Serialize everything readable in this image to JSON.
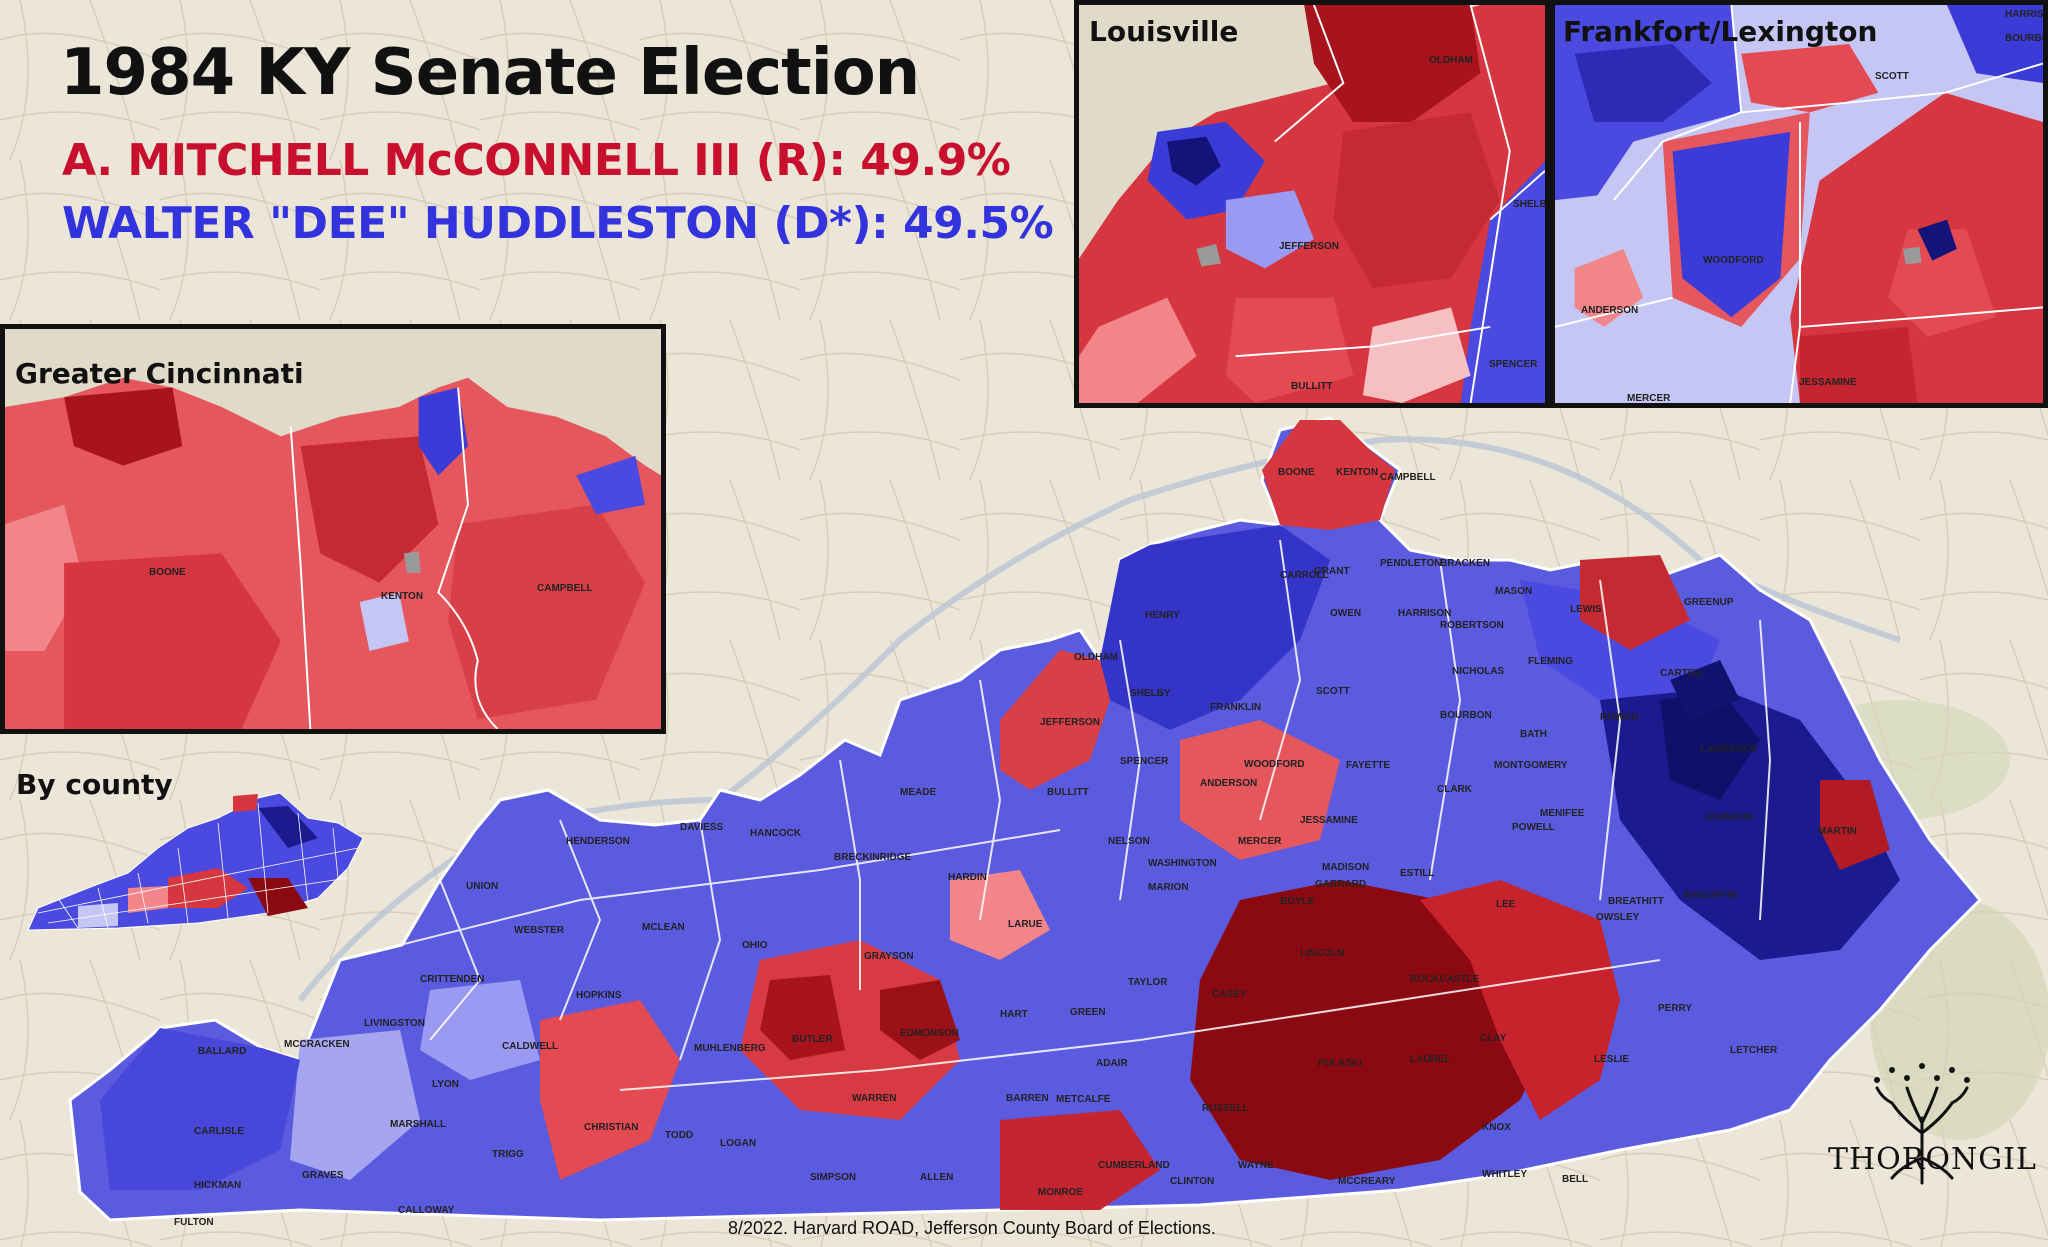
{
  "title": "1984 KY Senate Election",
  "candidates": {
    "republican": "A. MITCHELL McCONNELL III (R): 49.9%",
    "democrat": "WALTER \"DEE\" HUDDLESTON (D*): 49.5%"
  },
  "results": {
    "republican_pct": 49.9,
    "democrat_pct": 49.5
  },
  "colors": {
    "rep_dark": "#8b0a12",
    "rep_mid": "#d6363f",
    "rep_light": "#f2858a",
    "rep_pale": "#f6c0c2",
    "dem_dark": "#13137a",
    "dem_mid": "#3b3bd8",
    "dem_light": "#7f7ff0",
    "dem_pale": "#c6c6f5",
    "tie": "#9a9a9a"
  },
  "insets": {
    "louisville": "Louisville",
    "frankfort": "Frankfort/Lexington",
    "cincinnati": "Greater Cincinnati",
    "by_county": "By county"
  },
  "counties": {
    "louisville": [
      "OLDHAM",
      "SHELBY",
      "JEFFERSON",
      "SPENCER",
      "BULLITT"
    ],
    "frankfort": [
      "SCOTT",
      "BOURBON",
      "WOODFORD",
      "ANDERSON",
      "MERCER",
      "JESSAMINE",
      "HARRISON"
    ],
    "cincinnati": [
      "BOONE",
      "KENTON",
      "CAMPBELL"
    ],
    "main": [
      "BOONE",
      "KENTON",
      "CAMPBELL",
      "GRANT",
      "PENDLETON",
      "BRACKEN",
      "MASON",
      "LEWIS",
      "GREENUP",
      "CARROLL",
      "OWEN",
      "HARRISON",
      "ROBERTSON",
      "FLEMING",
      "CARTER",
      "HENRY",
      "SCOTT",
      "NICHOLAS",
      "BOURBON",
      "ROWAN",
      "OLDHAM",
      "SHELBY",
      "FRANKLIN",
      "WOODFORD",
      "FAYETTE",
      "CLARK",
      "MONTGOMERY",
      "BATH",
      "LAWRENCE",
      "JEFFERSON",
      "SPENCER",
      "ANDERSON",
      "JESSAMINE",
      "POWELL",
      "MENIFEE",
      "JOHNSON",
      "MARTIN",
      "BULLITT",
      "NELSON",
      "MERCER",
      "MADISON",
      "ESTILL",
      "MAGOFFIN",
      "MEADE",
      "WASHINGTON",
      "BOYLE",
      "GARRARD",
      "LEE",
      "HANCOCK",
      "BRECKINRIDGE",
      "DAVIESS",
      "HENDERSON",
      "HARDIN",
      "LARUE",
      "MARION",
      "LINCOLN",
      "OWSLEY",
      "UNION",
      "WEBSTER",
      "MCLEAN",
      "OHIO",
      "TAYLOR",
      "CASEY",
      "ROCKCASTLE",
      "BREATHITT",
      "PERRY",
      "CRITTENDEN",
      "HOPKINS",
      "GRAYSON",
      "HART",
      "GREEN",
      "PULASKI",
      "LAUREL",
      "CLAY",
      "LESLIE",
      "LIVINGSTON",
      "CALDWELL",
      "MUHLENBERG",
      "BUTLER",
      "EDMONSON",
      "ADAIR",
      "RUSSELL",
      "KNOX",
      "LETCHER",
      "BALLARD",
      "MCCRACKEN",
      "LYON",
      "WARREN",
      "BARREN",
      "METCALFE",
      "CARLISLE",
      "MARSHALL",
      "CHRISTIAN",
      "TODD",
      "LOGAN",
      "SIMPSON",
      "ALLEN",
      "MONROE",
      "CUMBERLAND",
      "CLINTON",
      "WAYNE",
      "MCCREARY",
      "WHITLEY",
      "BELL",
      "HICKMAN",
      "GRAVES",
      "TRIGG",
      "CALLOWAY",
      "FULTON"
    ]
  },
  "source": "8/2022. Harvard ROAD, Jefferson County Board of Elections.",
  "author": "THORONGIL"
}
